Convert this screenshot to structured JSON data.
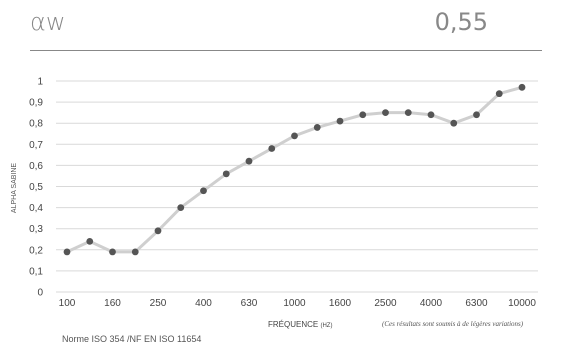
{
  "header": {
    "aw_label": "αw",
    "aw_value": "0,55"
  },
  "footer": {
    "note": "(Ces résultats sont soumis à de légères variations)",
    "norme": "Norme ISO 354 /NF EN ISO 11654"
  },
  "chart_data": {
    "type": "line",
    "title": "",
    "xlabel": "FRÉQUENCE",
    "xlabel_unit": "(HZ)",
    "ylabel": "ALPHA SABINE",
    "ylim": [
      0,
      1
    ],
    "yticks": [
      "0",
      "0,1",
      "0,2",
      "0,3",
      "0,4",
      "0,5",
      "0,6",
      "0,7",
      "0,8",
      "0,9",
      "1"
    ],
    "grid": true,
    "x": [
      "100",
      "125",
      "160",
      "200",
      "250",
      "315",
      "400",
      "500",
      "630",
      "800",
      "1000",
      "1250",
      "1600",
      "2000",
      "2500",
      "3150",
      "4000",
      "5000",
      "6300",
      "8000",
      "10000"
    ],
    "xtick_labels": [
      "100",
      "160",
      "250",
      "400",
      "630",
      "1000",
      "1600",
      "2500",
      "4000",
      "6300",
      "10000"
    ],
    "series": [
      {
        "values": [
          0.19,
          0.24,
          0.19,
          0.19,
          0.29,
          0.4,
          0.48,
          0.56,
          0.62,
          0.68,
          0.74,
          0.78,
          0.81,
          0.84,
          0.85,
          0.85,
          0.84,
          0.8,
          0.84,
          0.94,
          0.97
        ]
      }
    ],
    "colors": {
      "line": "#cfcfcf",
      "marker": "#555555",
      "grid": "#d9d9d9"
    }
  }
}
